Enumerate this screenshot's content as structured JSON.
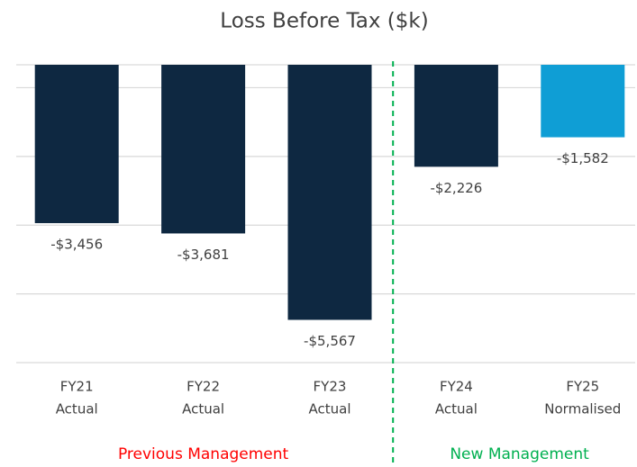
{
  "chart_data": {
    "type": "bar",
    "title": "Loss Before Tax ($k)",
    "categories": [
      [
        "FY21",
        "Actual"
      ],
      [
        "FY22",
        "Actual"
      ],
      [
        "FY23",
        "Actual"
      ],
      [
        "FY24",
        "Actual"
      ],
      [
        "FY25",
        "Normalised"
      ]
    ],
    "values": [
      -3456,
      -3681,
      -5567,
      -2226,
      -1582
    ],
    "value_labels": [
      "-$3,456",
      "-$3,681",
      "-$5,567",
      "-$2,226",
      "-$1,582"
    ],
    "colors": [
      "#0e2841",
      "#0e2841",
      "#0e2841",
      "#0e2841",
      "#0f9ed5"
    ],
    "ylim": [
      -6500,
      0
    ],
    "yticks": [
      -6500,
      -5000,
      -3500,
      -2000,
      -500,
      0
    ],
    "grid": true,
    "annotations": [
      {
        "text": "Previous Management",
        "color": "#ff0000"
      },
      {
        "text": "New Management",
        "color": "#00b050"
      }
    ]
  }
}
